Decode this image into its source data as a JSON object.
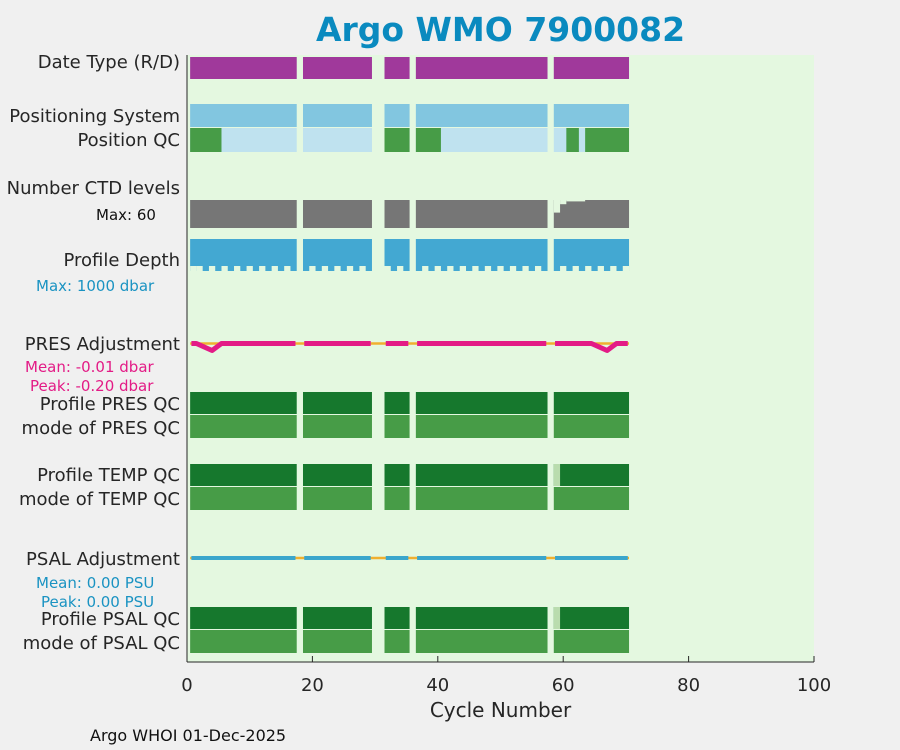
{
  "title": "Argo WMO 7900082",
  "colors": {
    "plot_bg": "#e4f8e0",
    "date_type": "#a0399b",
    "positioning": "#82c6e0",
    "position_qc_good": "#479c47",
    "position_qc_light": "#bfe2ef",
    "ctd": "#767676",
    "profile_depth": "#43a8d2",
    "qc_dark": "#16782d",
    "qc_mode": "#479c47",
    "qc_pale": "#b9dcae",
    "pres_adj": "#e31b86",
    "psal_adj": "#3aa6cc",
    "zero_line": "#f0b030",
    "title": "#0a8abf"
  },
  "row_labels": {
    "date_type": "Date Type (R/D)",
    "positioning": "Positioning System",
    "position_qc": "Position QC",
    "ctd_levels": "Number CTD levels",
    "profile_depth": "Profile Depth",
    "pres_adj": "PRES Adjustment",
    "profile_pres_qc": "Profile PRES QC",
    "mode_pres_qc": "mode of PRES QC",
    "profile_temp_qc": "Profile TEMP QC",
    "mode_temp_qc": "mode of TEMP QC",
    "psal_adj": "PSAL Adjustment",
    "profile_psal_qc": "Profile PSAL QC",
    "mode_psal_qc": "mode of PSAL QC"
  },
  "notes": {
    "ctd_max": "Max: 60",
    "depth_max": "Max: 1000 dbar",
    "pres_mean": "Mean: -0.01 dbar",
    "pres_peak": "Peak: -0.20 dbar",
    "psal_mean": "Mean: 0.00 PSU",
    "psal_peak": "Peak: 0.00 PSU"
  },
  "footer": "Argo WHOI 01-Dec-2025",
  "chart_data": {
    "type": "bar",
    "title": "Argo WMO 7900082",
    "xlabel": "Cycle Number",
    "xlim": [
      0,
      100
    ],
    "xticks": [
      0,
      20,
      40,
      60,
      80,
      100
    ],
    "cycle_segments": [
      [
        0.5,
        17.5
      ],
      [
        18.5,
        29.5
      ],
      [
        31.5,
        35.5
      ],
      [
        36.5,
        57.5
      ],
      [
        58.5,
        70.5
      ]
    ],
    "position_qc_good": [
      [
        0.5,
        5.5
      ],
      [
        31.5,
        35.5
      ],
      [
        36.5,
        40.5
      ],
      [
        60.5,
        62.5
      ],
      [
        63.5,
        70.5
      ]
    ],
    "ctd_levels_max": 60,
    "ctd_levels_shortfall": [
      [
        58.5,
        59.5,
        0.45
      ],
      [
        59.5,
        60.5,
        0.15
      ],
      [
        60.5,
        63.5,
        0.05
      ]
    ],
    "profile_depth_max_dbar": 1000,
    "pres_adjustment": {
      "mean_dbar": -0.01,
      "peak_dbar": -0.2,
      "dips": [
        {
          "start": 1.5,
          "min_at": 4,
          "end": 5.5
        },
        {
          "start": 64.5,
          "min_at": 67,
          "end": 68.5
        }
      ]
    },
    "psal_adjustment": {
      "mean_psu": 0.0,
      "peak_psu": 0.0
    },
    "temp_qc_pale": [
      [
        58.5,
        59.5
      ]
    ],
    "psal_qc_pale": [
      [
        58.5,
        59.5
      ]
    ]
  }
}
